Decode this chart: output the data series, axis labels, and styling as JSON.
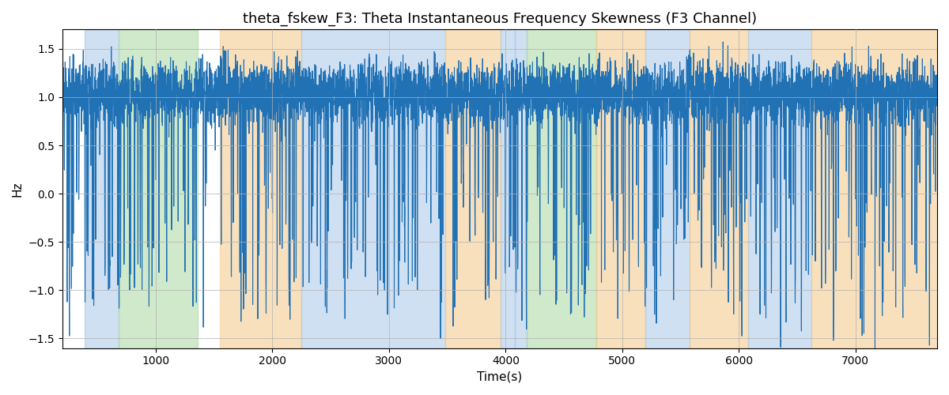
{
  "title": "theta_fskew_F3: Theta Instantaneous Frequency Skewness (F3 Channel)",
  "xlabel": "Time(s)",
  "ylabel": "Hz",
  "ylim": [
    -1.6,
    1.7
  ],
  "xlim": [
    200,
    7700
  ],
  "line_color": "#2171b5",
  "line_width": 0.8,
  "background_color": "#ffffff",
  "grid_color": "#b0b0b0",
  "colored_bands": [
    {
      "xmin": 390,
      "xmax": 680,
      "color": "#a8c8e8",
      "alpha": 0.55
    },
    {
      "xmin": 680,
      "xmax": 1360,
      "color": "#a8d8a0",
      "alpha": 0.55
    },
    {
      "xmin": 1550,
      "xmax": 2250,
      "color": "#f5c888",
      "alpha": 0.55
    },
    {
      "xmin": 2250,
      "xmax": 3480,
      "color": "#a8c8e8",
      "alpha": 0.55
    },
    {
      "xmin": 3480,
      "xmax": 3960,
      "color": "#f5c888",
      "alpha": 0.55
    },
    {
      "xmin": 3960,
      "xmax": 4080,
      "color": "#a8c8e8",
      "alpha": 0.55
    },
    {
      "xmin": 4080,
      "xmax": 4180,
      "color": "#a8c8e8",
      "alpha": 0.55
    },
    {
      "xmin": 4180,
      "xmax": 4780,
      "color": "#a8d8a0",
      "alpha": 0.55
    },
    {
      "xmin": 4780,
      "xmax": 5200,
      "color": "#f5c888",
      "alpha": 0.55
    },
    {
      "xmin": 5200,
      "xmax": 5580,
      "color": "#a8c8e8",
      "alpha": 0.55
    },
    {
      "xmin": 5580,
      "xmax": 6080,
      "color": "#f5c888",
      "alpha": 0.55
    },
    {
      "xmin": 6080,
      "xmax": 6620,
      "color": "#a8c8e8",
      "alpha": 0.55
    },
    {
      "xmin": 6620,
      "xmax": 7700,
      "color": "#f5c888",
      "alpha": 0.55
    }
  ],
  "xticks": [
    1000,
    2000,
    3000,
    4000,
    5000,
    6000,
    7000
  ],
  "yticks": [
    -1.5,
    -1.0,
    -0.5,
    0.0,
    0.5,
    1.0,
    1.5
  ],
  "title_fontsize": 13,
  "label_fontsize": 11,
  "tick_fontsize": 10
}
